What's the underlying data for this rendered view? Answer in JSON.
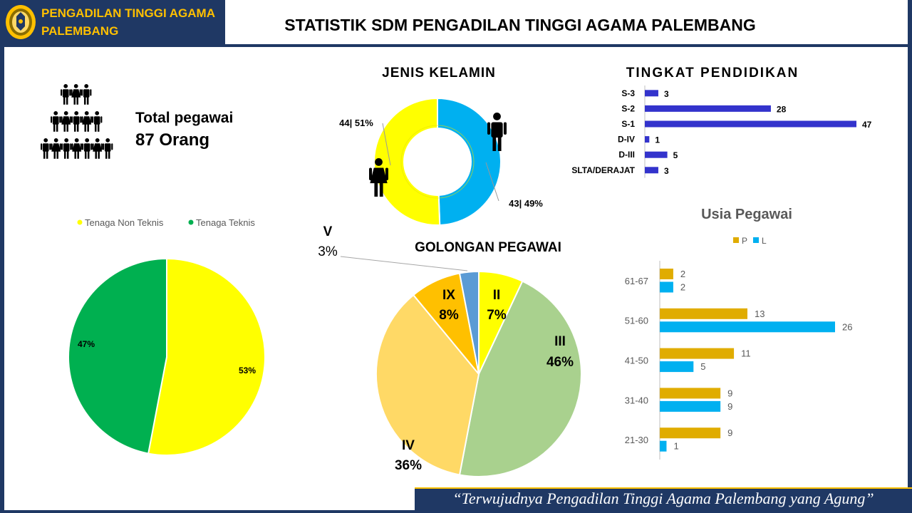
{
  "header": {
    "org_line1": "PENGADILAN TINGGI AGAMA",
    "org_line2": "PALEMBANG",
    "title": "STATISTIK SDM PENGADILAN TINGGI AGAMA PALEMBANG"
  },
  "total": {
    "label": "Total pegawai",
    "value": "87 Orang"
  },
  "footer": {
    "tagline": "“Terwujudnya Pengadilan Tinggi Agama Palembang yang Agung”"
  },
  "colors": {
    "frame": "#1f3864",
    "gold": "#ffc000",
    "yellow": "#ffff00",
    "green": "#00b050",
    "blue": "#00b0f0",
    "bar_blue": "#3333cc",
    "usia_p": "#e0ac00",
    "usia_l": "#00b0f0",
    "gol_ii": "#ffff00",
    "gol_iii": "#a9d18e",
    "gol_iv": "#ffd966",
    "gol_ix": "#ffc000",
    "gol_v": "#5b9bd5"
  },
  "chart_data": [
    {
      "id": "jenis-kelamin",
      "type": "pie",
      "title": "JENIS KELAMIN",
      "donut": true,
      "categories": [
        "Perempuan",
        "Laki-laki"
      ],
      "values": [
        44,
        43
      ],
      "labels": [
        "44| 51%",
        "43| 49%"
      ],
      "colors": [
        "#ffff00",
        "#00b0f0"
      ],
      "icons": [
        "female-person-icon",
        "male-person-icon"
      ]
    },
    {
      "id": "tingkat-pendidikan",
      "type": "bar",
      "orientation": "horizontal",
      "title": "TINGKAT PENDIDIKAN",
      "categories": [
        "S-3",
        "S-2",
        "S-1",
        "D-IV",
        "D-III",
        "SLTA/DERAJAT"
      ],
      "values": [
        3,
        28,
        47,
        1,
        5,
        3
      ],
      "color": "#3333cc",
      "xlim": [
        0,
        47
      ]
    },
    {
      "id": "tenaga",
      "type": "pie",
      "title": "",
      "categories": [
        "Tenaga Non Teknis",
        "Tenaga Teknis"
      ],
      "values": [
        53,
        47
      ],
      "labels": [
        "53%",
        "47%"
      ],
      "colors": [
        "#ffff00",
        "#00b050"
      ],
      "legend": "top"
    },
    {
      "id": "golongan-pegawai",
      "type": "pie",
      "title": "GOLONGAN PEGAWAI",
      "categories": [
        "II",
        "III",
        "IV",
        "IX",
        "V"
      ],
      "values": [
        7,
        46,
        36,
        8,
        3
      ],
      "labels": [
        "7%",
        "46%",
        "36%",
        "8%",
        "3%"
      ],
      "colors": [
        "#ffff00",
        "#a9d18e",
        "#ffd966",
        "#ffc000",
        "#5b9bd5"
      ]
    },
    {
      "id": "usia-pegawai",
      "type": "bar",
      "orientation": "horizontal",
      "title": "Usia Pegawai",
      "categories": [
        "61-67",
        "51-60",
        "41-50",
        "31-40",
        "21-30"
      ],
      "series": [
        {
          "name": "P",
          "values": [
            2,
            13,
            11,
            9,
            9
          ],
          "color": "#e0ac00"
        },
        {
          "name": "L",
          "values": [
            2,
            26,
            5,
            9,
            1
          ],
          "color": "#00b0f0"
        }
      ],
      "legend": "top",
      "xlim": [
        0,
        26
      ]
    }
  ]
}
